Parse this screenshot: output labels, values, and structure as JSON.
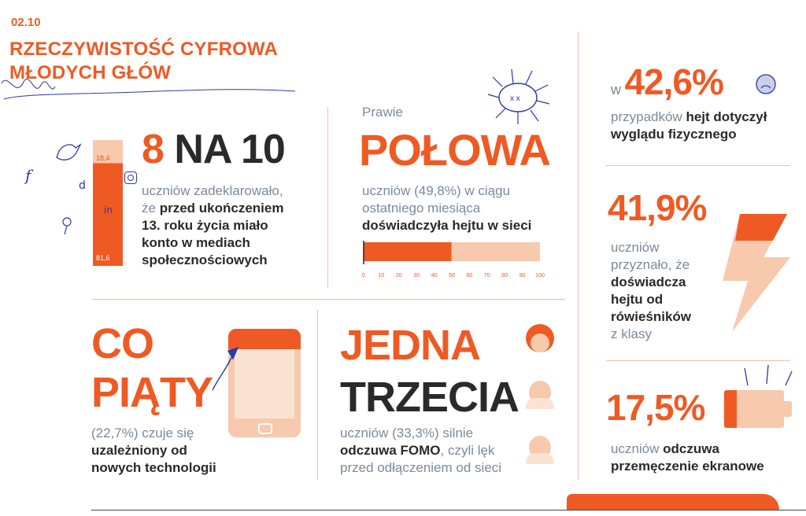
{
  "header": {
    "section_number": "02.10",
    "title_line1": "RZECZYWISTOŚĆ CYFROWA",
    "title_line2": "MŁODYCH GŁÓW"
  },
  "block_8na10": {
    "headline_num": "8",
    "headline_rest": "NA 10",
    "bar_top_label": "18,4",
    "bar_bottom_label": "81,6",
    "bar_value_top": 18.4,
    "bar_value_bottom": 81.6,
    "text_grey1": "uczniów zadeklarowało,",
    "text_grey2": "że",
    "text_bold2": "przed ukończeniem",
    "text_bold3": "13. roku życia miało",
    "text_bold4": "konto w mediach",
    "text_bold5": "społecznościowych"
  },
  "block_polowa": {
    "prefix": "Prawie",
    "headline": "POŁOWA",
    "text_grey1": "uczniów (49,8%) w ciągu",
    "text_grey2": "ostatniego miesiąca",
    "text_bold": "doświadczyła hejtu w sieci",
    "bar_value": 49.8,
    "axis_ticks": [
      "0",
      "10",
      "20",
      "30",
      "40",
      "50",
      "60",
      "70",
      "80",
      "90",
      "100"
    ]
  },
  "block_42": {
    "prefix": "w",
    "headline": "42,6%",
    "text_grey": "przypadków",
    "text_bold1": "hejt dotyczył",
    "text_bold2": "wyglądu fizycznego"
  },
  "block_41": {
    "headline": "41,9%",
    "line1": "uczniów",
    "line2": "przyznało, że",
    "bold1": "doświadcza",
    "bold2": "hejtu od",
    "bold3": "rówieśników",
    "line6": "z klasy"
  },
  "block_copiaty": {
    "headline1": "CO",
    "headline2": "PIĄTY",
    "text_grey": "(22,7%) czuje się",
    "text_bold1": "uzależniony od",
    "text_bold2": "nowych technologii"
  },
  "block_jedna": {
    "headline1": "JEDNA",
    "headline2": "TRZECIA",
    "text_grey1": "uczniów (33,3%) silnie",
    "text_bold": "odczuwa FOMO",
    "text_grey2": ", czyli lęk",
    "text_grey3": "przed odłączeniem od sieci"
  },
  "block_17": {
    "headline": "17,5%",
    "text_grey": "uczniów",
    "text_bold1": "odczuwa",
    "text_bold2": "przemęczenie ekranowe"
  },
  "colors": {
    "accent": "#ef5a24",
    "light": "#f7c9ad",
    "grey_text": "#7b8a9a",
    "ink": "#2a2a2a",
    "doodle_blue": "#2b3aa8"
  }
}
